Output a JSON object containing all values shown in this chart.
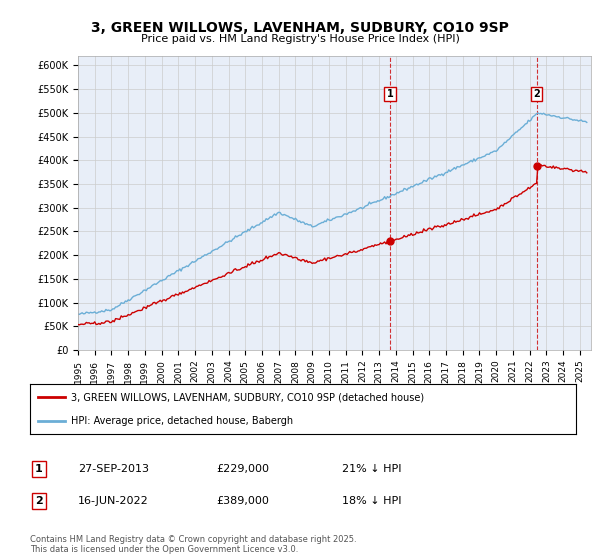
{
  "title": "3, GREEN WILLOWS, LAVENHAM, SUDBURY, CO10 9SP",
  "subtitle": "Price paid vs. HM Land Registry's House Price Index (HPI)",
  "ylim": [
    0,
    620000
  ],
  "yticks": [
    0,
    50000,
    100000,
    150000,
    200000,
    250000,
    300000,
    350000,
    400000,
    450000,
    500000,
    550000,
    600000
  ],
  "ytick_labels": [
    "£0",
    "£50K",
    "£100K",
    "£150K",
    "£200K",
    "£250K",
    "£300K",
    "£350K",
    "£400K",
    "£450K",
    "£500K",
    "£550K",
    "£600K"
  ],
  "hpi_color": "#6baed6",
  "price_color": "#cc0000",
  "dot_color": "#cc0000",
  "sale1": {
    "date": "27-SEP-2013",
    "price": 229000,
    "label": "21% ↓ HPI"
  },
  "sale2": {
    "date": "16-JUN-2022",
    "price": 389000,
    "label": "18% ↓ HPI"
  },
  "legend_price": "3, GREEN WILLOWS, LAVENHAM, SUDBURY, CO10 9SP (detached house)",
  "legend_hpi": "HPI: Average price, detached house, Babergh",
  "footnote": "Contains HM Land Registry data © Crown copyright and database right 2025.\nThis data is licensed under the Open Government Licence v3.0.",
  "bg_color": "#e8eef8",
  "plot_bg": "#ffffff",
  "grid_color": "#cccccc"
}
